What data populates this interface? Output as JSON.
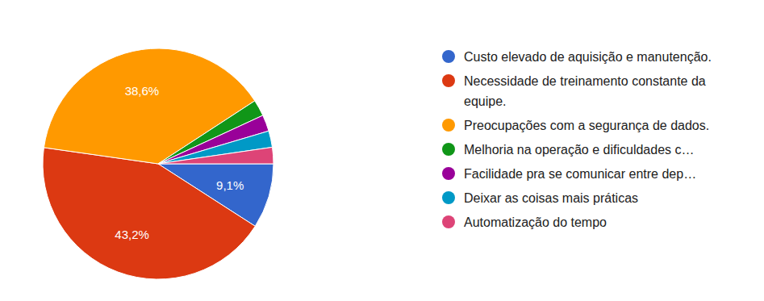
{
  "chart_data": {
    "type": "pie",
    "categories": [
      "Custo elevado de aquisição e manutenção.",
      "Necessidade de treinamento constante da equipe.",
      "Preocupações com a segurança de dados.",
      "Melhoria na operação e dificuldades c…",
      "Facilidade pra se comunicar entre dep…",
      "Deixar as coisas mais práticas",
      "Automatização do tempo"
    ],
    "values": [
      9.1,
      43.2,
      38.6,
      2.3,
      2.3,
      2.3,
      2.3
    ],
    "colors": [
      "#3366cc",
      "#dc3912",
      "#ff9900",
      "#109618",
      "#990099",
      "#0099c6",
      "#dd4477"
    ],
    "data_labels": true,
    "value_labels": [
      "9,1%",
      "43,2%",
      "38,6%",
      null,
      null,
      null,
      null
    ],
    "legend": "right"
  }
}
